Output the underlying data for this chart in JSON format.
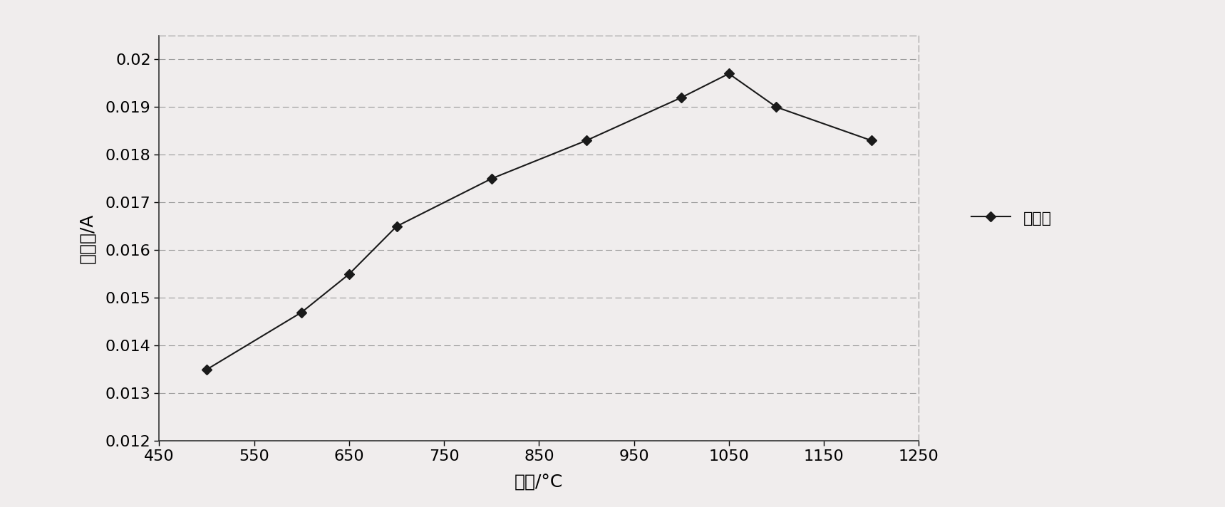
{
  "x": [
    500,
    600,
    650,
    700,
    800,
    900,
    1000,
    1050,
    1100,
    1200
  ],
  "y": [
    0.0135,
    0.0147,
    0.0155,
    0.0165,
    0.0175,
    0.0183,
    0.0192,
    0.0197,
    0.019,
    0.0183
  ],
  "line_color": "#1a1a1a",
  "marker": "D",
  "marker_color": "#1a1a1a",
  "marker_size": 7,
  "line_width": 1.5,
  "xlabel": "温度/°C",
  "ylabel": "吸光度/A",
  "legend_label": "吸光度",
  "xlim": [
    450,
    1250
  ],
  "ylim": [
    0.012,
    0.0205
  ],
  "xticks": [
    450,
    550,
    650,
    750,
    850,
    950,
    1050,
    1150,
    1250
  ],
  "yticks": [
    0.012,
    0.013,
    0.014,
    0.015,
    0.016,
    0.017,
    0.018,
    0.019,
    0.02
  ],
  "ytick_labels": [
    "0.012",
    "0.013",
    "0.014",
    "0.015",
    "0.016",
    "0.017",
    "0.018",
    "0.019",
    "0.02"
  ],
  "grid_color": "#999999",
  "background_color": "#f0eded",
  "axis_fontsize": 18,
  "tick_fontsize": 16,
  "legend_fontsize": 16
}
